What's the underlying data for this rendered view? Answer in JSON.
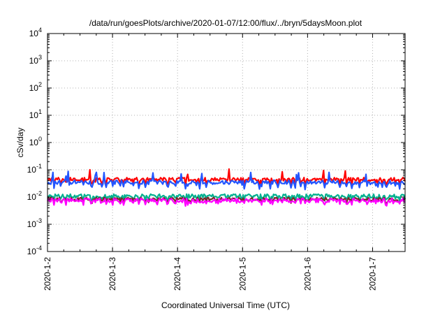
{
  "chart_data": {
    "type": "line",
    "title": "/data/run/goesPlots/archive/2020-01-07/12:00/flux/../bryn/5daysMoon.plot",
    "xlabel": "Coordinated Universal Time (UTC)",
    "ylabel": "cSv/day",
    "yscale": "log",
    "ylim": [
      0.0001,
      10000
    ],
    "xlim": [
      0,
      5.5
    ],
    "grid": true,
    "x_ticks": [
      {
        "x": 0,
        "label": "2020-1-2"
      },
      {
        "x": 1,
        "label": "2020-1-3"
      },
      {
        "x": 2,
        "label": "2020-1-4"
      },
      {
        "x": 3,
        "label": "2020-1-5"
      },
      {
        "x": 4,
        "label": "2020-1-6"
      },
      {
        "x": 5,
        "label": "2020-1-7"
      }
    ],
    "y_ticks": [
      {
        "value": 0.0001,
        "base": "10",
        "exp": "-4"
      },
      {
        "value": 0.001,
        "base": "10",
        "exp": "-3"
      },
      {
        "value": 0.01,
        "base": "10",
        "exp": "-2"
      },
      {
        "value": 0.1,
        "base": "10",
        "exp": "-1"
      },
      {
        "value": 1,
        "base": "10",
        "exp": "0"
      },
      {
        "value": 10,
        "base": "10",
        "exp": "1"
      },
      {
        "value": 100,
        "base": "10",
        "exp": "2"
      },
      {
        "value": 1000,
        "base": "10",
        "exp": "3"
      },
      {
        "value": 10000,
        "base": "10",
        "exp": "4"
      }
    ],
    "series": [
      {
        "color": "#ff0000",
        "base": 0.045,
        "dip": 0.025,
        "noise": 0.3
      },
      {
        "color": "#2255ff",
        "base": 0.035,
        "dip": 0.02,
        "noise": 0.35
      },
      {
        "color": "#00b08f",
        "base": 0.011,
        "dip": 0.008,
        "noise": 0.3
      },
      {
        "color": "#7a2a2a",
        "base": 0.0085,
        "dip": 0.0075,
        "noise": 0.25
      },
      {
        "color": "#ff00ff",
        "base": 0.0075,
        "dip": 0.0065,
        "noise": 0.35
      }
    ]
  }
}
